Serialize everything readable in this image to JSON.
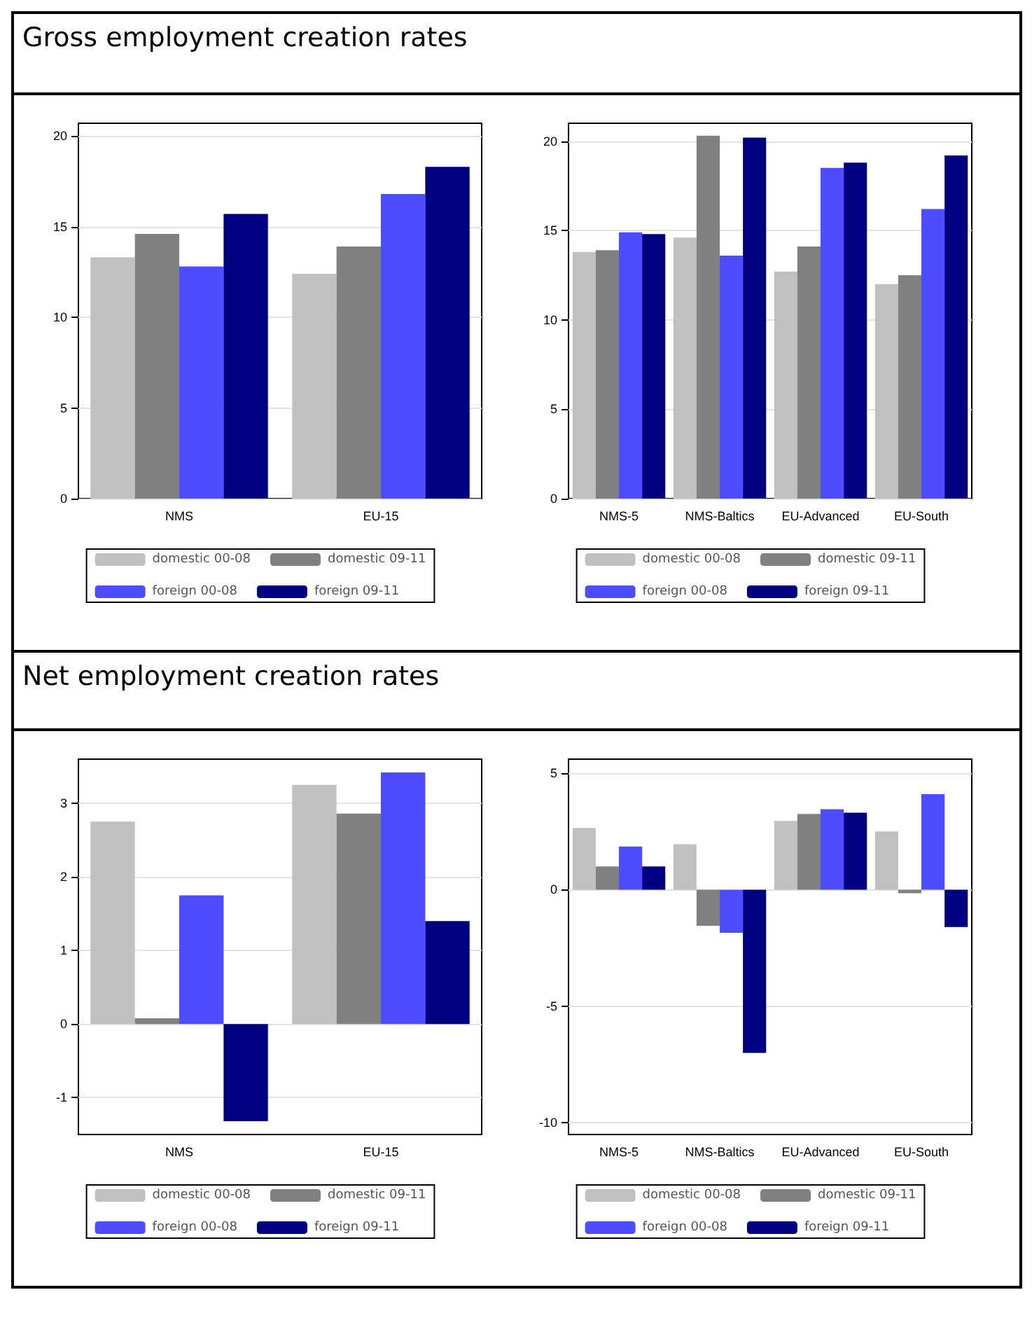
{
  "chart_data": [
    {
      "type": "bar",
      "title": "Gross employment creation rates",
      "categories": [
        "NMS",
        "EU-15"
      ],
      "series": [
        {
          "name": "domestic 00-08",
          "color": "#c0c0c0",
          "values": [
            13.3,
            12.4
          ]
        },
        {
          "name": "domestic 09-11",
          "color": "#808080",
          "values": [
            14.6,
            13.9
          ]
        },
        {
          "name": "foreign 00-08",
          "color": "#4d4dff",
          "values": [
            12.8,
            16.8
          ]
        },
        {
          "name": "foreign 09-11",
          "color": "#000080",
          "values": [
            15.7,
            18.3
          ]
        }
      ],
      "ylim": [
        0,
        20.7
      ],
      "yticks": [
        0,
        5,
        10,
        15,
        20
      ],
      "grid": "y",
      "legend": "bottom"
    },
    {
      "type": "bar",
      "categories": [
        "NMS-5",
        "NMS-Baltics",
        "EU-Advanced",
        "EU-South"
      ],
      "series": [
        {
          "name": "domestic 00-08",
          "color": "#c0c0c0",
          "values": [
            13.8,
            14.6,
            12.7,
            12.0
          ]
        },
        {
          "name": "domestic 09-11",
          "color": "#808080",
          "values": [
            13.9,
            20.3,
            14.1,
            12.5
          ]
        },
        {
          "name": "foreign 00-08",
          "color": "#4d4dff",
          "values": [
            14.9,
            13.6,
            18.5,
            16.2
          ]
        },
        {
          "name": "foreign 09-11",
          "color": "#000080",
          "values": [
            14.8,
            20.2,
            18.8,
            19.2
          ]
        }
      ],
      "ylim": [
        0,
        21
      ],
      "yticks": [
        0,
        5,
        10,
        15,
        20
      ],
      "grid": "y",
      "legend": "bottom"
    },
    {
      "type": "bar",
      "title": "Net employment creation rates",
      "categories": [
        "NMS",
        "EU-15"
      ],
      "series": [
        {
          "name": "domestic 00-08",
          "color": "#c0c0c0",
          "values": [
            2.75,
            3.25
          ]
        },
        {
          "name": "domestic 09-11",
          "color": "#808080",
          "values": [
            0.08,
            2.86
          ]
        },
        {
          "name": "foreign 00-08",
          "color": "#4d4dff",
          "values": [
            1.75,
            3.42
          ]
        },
        {
          "name": "foreign 09-11",
          "color": "#000080",
          "values": [
            -1.32,
            1.4
          ]
        }
      ],
      "ylim": [
        -1.5,
        3.6
      ],
      "yticks": [
        -1,
        0,
        1,
        2,
        3
      ],
      "grid": "y",
      "legend": "bottom"
    },
    {
      "type": "bar",
      "categories": [
        "NMS-5",
        "NMS-Baltics",
        "EU-Advanced",
        "EU-South"
      ],
      "series": [
        {
          "name": "domestic 00-08",
          "color": "#c0c0c0",
          "values": [
            2.65,
            1.95,
            2.95,
            2.5
          ]
        },
        {
          "name": "domestic 09-11",
          "color": "#808080",
          "values": [
            1.0,
            -1.55,
            3.25,
            -0.15
          ]
        },
        {
          "name": "foreign 00-08",
          "color": "#4d4dff",
          "values": [
            1.85,
            -1.85,
            3.45,
            4.1
          ]
        },
        {
          "name": "foreign 09-11",
          "color": "#000080",
          "values": [
            1.0,
            -7.0,
            3.3,
            -1.6
          ]
        }
      ],
      "ylim": [
        -10.5,
        5.6
      ],
      "yticks": [
        -10,
        -5,
        0,
        5
      ],
      "grid": "y",
      "legend": "bottom"
    }
  ]
}
